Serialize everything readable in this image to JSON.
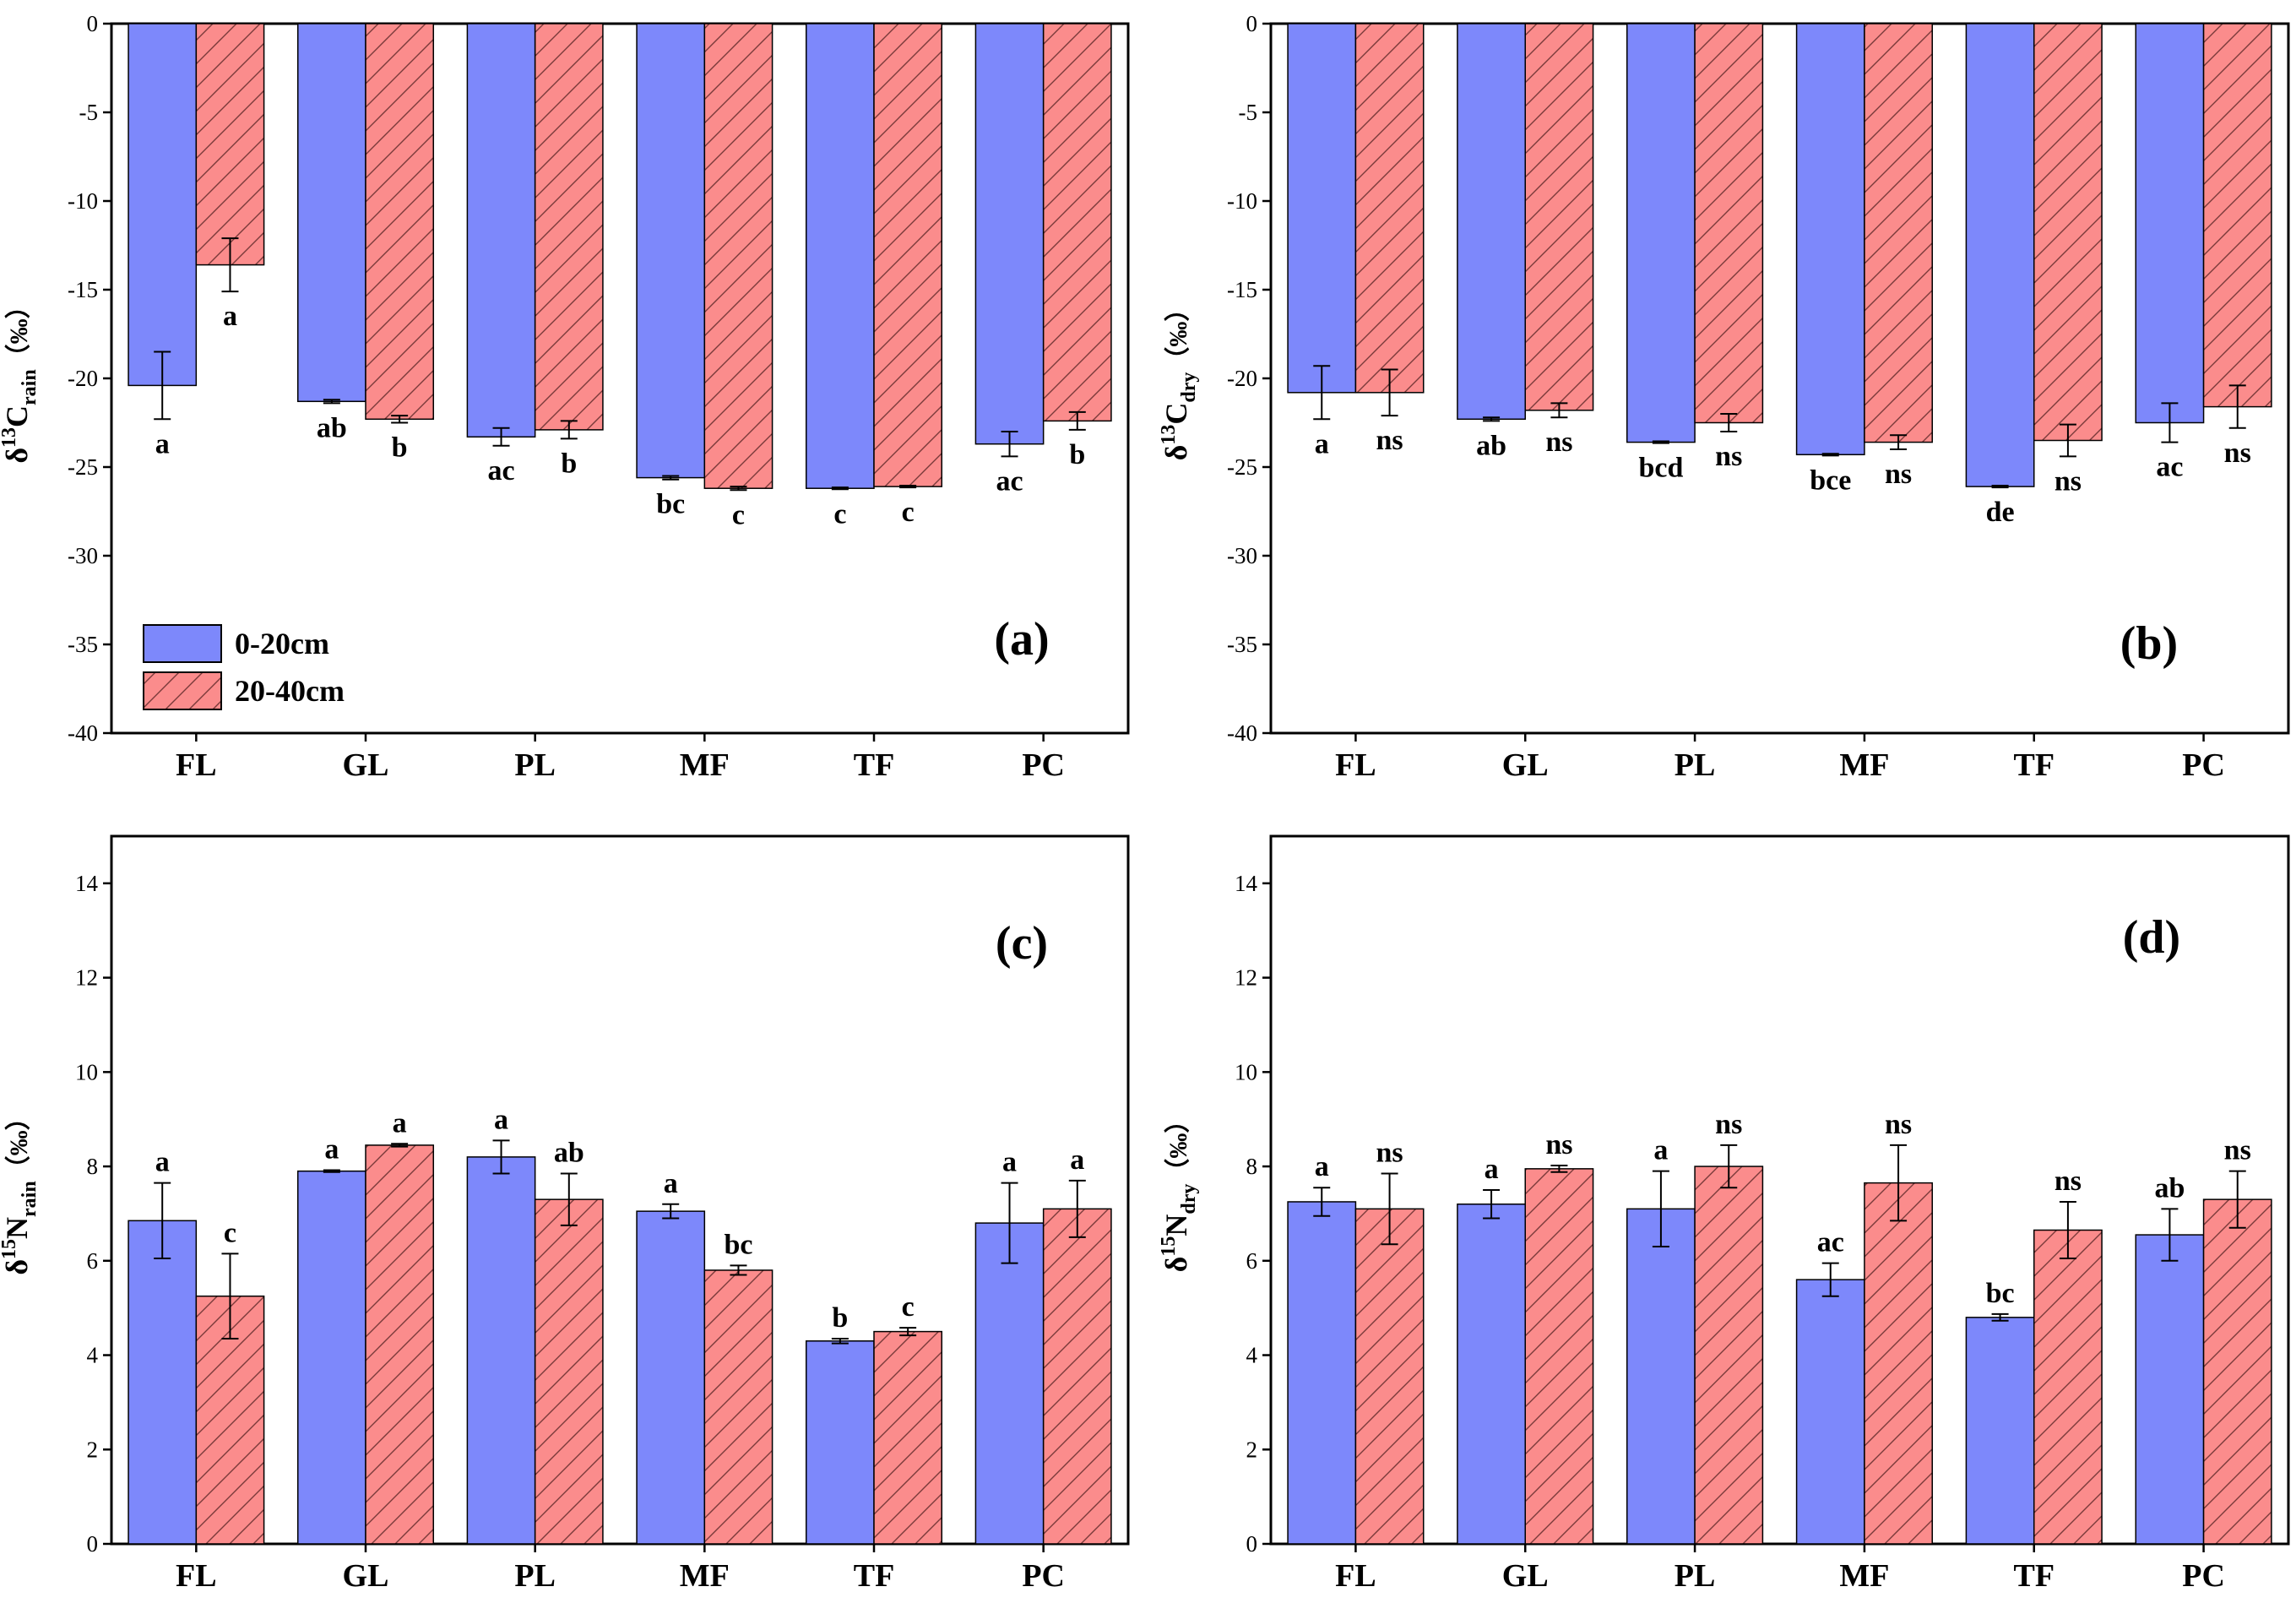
{
  "chart_data": [
    {
      "panel": "a",
      "type": "bar",
      "title": "",
      "panel_label": "(a)",
      "ylabel": "δ13Crain（‰）",
      "ylabel_parts": {
        "prefix": "δ",
        "sup": "13",
        "main": "C",
        "sub": "rain",
        "unit": "（‰）"
      },
      "xlabel": "",
      "categories": [
        "FL",
        "GL",
        "PL",
        "MF",
        "TF",
        "PC"
      ],
      "ylim": [
        -40,
        0
      ],
      "yticks": [
        0,
        -5,
        -10,
        -15,
        -20,
        -25,
        -30,
        -35,
        -40
      ],
      "series": [
        {
          "name": "0-20cm",
          "values": [
            -20.4,
            -21.3,
            -23.3,
            -25.6,
            -26.2,
            -23.7
          ],
          "errors": [
            1.9,
            0.1,
            0.5,
            0.1,
            0.05,
            0.7
          ],
          "letters": [
            "a",
            "ab",
            "ac",
            "bc",
            "c",
            "ac"
          ]
        },
        {
          "name": "20-40cm",
          "values": [
            -13.6,
            -22.3,
            -22.9,
            -26.2,
            -26.1,
            -22.4
          ],
          "errors": [
            1.5,
            0.2,
            0.5,
            0.1,
            0.05,
            0.5
          ],
          "letters": [
            "a",
            "b",
            "b",
            "c",
            "c",
            "b"
          ]
        }
      ],
      "legend": {
        "show": true,
        "placement": "bottom-left",
        "entries": [
          "0-20cm",
          "20-40cm"
        ]
      }
    },
    {
      "panel": "b",
      "type": "bar",
      "title": "",
      "panel_label": "(b)",
      "ylabel": "δ13Cdry（‰）",
      "ylabel_parts": {
        "prefix": "δ",
        "sup": "13",
        "main": "C",
        "sub": "dry",
        "unit": "（‰）"
      },
      "xlabel": "",
      "categories": [
        "FL",
        "GL",
        "PL",
        "MF",
        "TF",
        "PC"
      ],
      "ylim": [
        -40,
        0
      ],
      "yticks": [
        0,
        -5,
        -10,
        -15,
        -20,
        -25,
        -30,
        -35,
        -40
      ],
      "series": [
        {
          "name": "0-20cm",
          "values": [
            -20.8,
            -22.3,
            -23.6,
            -24.3,
            -26.1,
            -22.5
          ],
          "errors": [
            1.5,
            0.1,
            0.05,
            0.05,
            0.05,
            1.1
          ],
          "letters": [
            "a",
            "ab",
            "bcd",
            "bce",
            "de",
            "ac"
          ]
        },
        {
          "name": "20-40cm",
          "values": [
            -20.8,
            -21.8,
            -22.5,
            -23.6,
            -23.5,
            -21.6
          ],
          "errors": [
            1.3,
            0.4,
            0.5,
            0.4,
            0.9,
            1.2
          ],
          "letters": [
            "ns",
            "ns",
            "ns",
            "ns",
            "ns",
            "ns"
          ]
        }
      ],
      "legend": {
        "show": false
      }
    },
    {
      "panel": "c",
      "type": "bar",
      "title": "",
      "panel_label": "(c)",
      "ylabel": "δ15Nrain（‰）",
      "ylabel_parts": {
        "prefix": "δ",
        "sup": "15",
        "main": "N",
        "sub": "rain",
        "unit": "（‰）"
      },
      "xlabel": "",
      "categories": [
        "FL",
        "GL",
        "PL",
        "MF",
        "TF",
        "PC"
      ],
      "ylim": [
        0,
        15
      ],
      "yticks": [
        0,
        2,
        4,
        6,
        8,
        10,
        12,
        14
      ],
      "series": [
        {
          "name": "0-20cm",
          "values": [
            6.85,
            7.9,
            8.2,
            7.05,
            4.3,
            6.8
          ],
          "errors": [
            0.8,
            0.02,
            0.35,
            0.15,
            0.05,
            0.85
          ],
          "letters": [
            "a",
            "a",
            "a",
            "a",
            "b",
            "a"
          ]
        },
        {
          "name": "20-40cm",
          "values": [
            5.25,
            8.45,
            7.3,
            5.8,
            4.5,
            7.1
          ],
          "errors": [
            0.9,
            0.03,
            0.55,
            0.1,
            0.08,
            0.6
          ],
          "letters": [
            "c",
            "a",
            "ab",
            "bc",
            "c",
            "a"
          ]
        }
      ],
      "legend": {
        "show": false
      }
    },
    {
      "panel": "d",
      "type": "bar",
      "title": "",
      "panel_label": "(d)",
      "ylabel": "δ15Ndry（‰）",
      "ylabel_parts": {
        "prefix": "δ",
        "sup": "15",
        "main": "N",
        "sub": "dry",
        "unit": "（‰）"
      },
      "xlabel": "",
      "categories": [
        "FL",
        "GL",
        "PL",
        "MF",
        "TF",
        "PC"
      ],
      "ylim": [
        0,
        15
      ],
      "yticks": [
        0,
        2,
        4,
        6,
        8,
        10,
        12,
        14
      ],
      "series": [
        {
          "name": "0-20cm",
          "values": [
            7.25,
            7.2,
            7.1,
            5.6,
            4.8,
            6.55
          ],
          "errors": [
            0.3,
            0.3,
            0.8,
            0.35,
            0.07,
            0.55
          ],
          "letters": [
            "a",
            "a",
            "a",
            "ac",
            "bc",
            "ab"
          ]
        },
        {
          "name": "20-40cm",
          "values": [
            7.1,
            7.95,
            8.0,
            7.65,
            6.65,
            7.3
          ],
          "errors": [
            0.75,
            0.07,
            0.45,
            0.8,
            0.6,
            0.6
          ],
          "letters": [
            "ns",
            "ns",
            "ns",
            "ns",
            "ns",
            "ns"
          ]
        }
      ],
      "legend": {
        "show": false
      }
    }
  ],
  "colors": {
    "series_0_fill": "#7d88fb",
    "series_1_fill": "#fb8c8c",
    "hatch_stroke": "#7a3a3a",
    "bar_edge": "#000000",
    "axis": "#000000"
  }
}
